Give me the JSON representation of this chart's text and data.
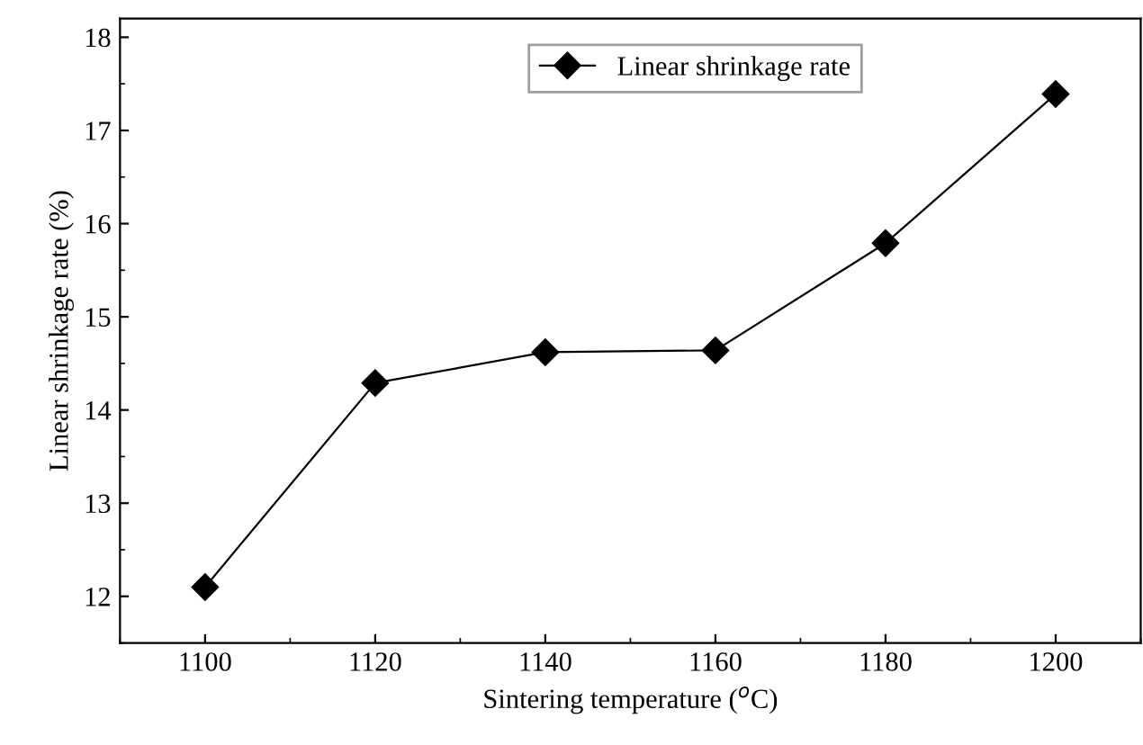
{
  "chart_data": {
    "type": "line",
    "xlabel": "Sintering temperature ($^{o}$C)",
    "ylabel": "Linear shrinkage rate (%)",
    "x": [
      1100,
      1120,
      1140,
      1160,
      1180,
      1200
    ],
    "series": [
      {
        "name": "Linear shrinkage rate",
        "color": "#000000",
        "values": [
          12.1,
          14.29,
          14.62,
          14.64,
          15.79,
          17.39
        ]
      }
    ],
    "xlim": [
      1090,
      1210
    ],
    "xticks": [
      1100,
      1120,
      1140,
      1160,
      1180,
      1200
    ],
    "ylim": [
      11.5,
      18.2
    ],
    "yticks": [
      12,
      13,
      14,
      15,
      16,
      17,
      18
    ],
    "marker": "diamond",
    "line_style": "solid",
    "grid": false,
    "legend": "top right"
  }
}
